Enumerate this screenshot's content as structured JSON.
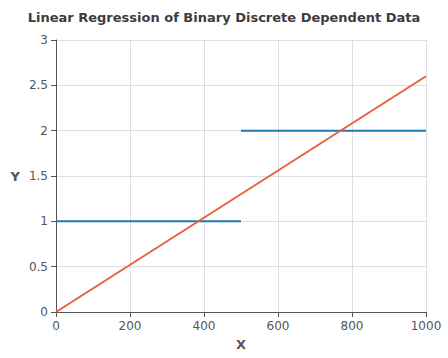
{
  "chart_data": {
    "type": "line",
    "title": "Linear Regression of Binary Discrete Dependent Data",
    "xlabel": "X",
    "ylabel": "Y",
    "xlim": [
      0,
      1000
    ],
    "xticks": [
      0,
      200,
      400,
      600,
      800,
      1000
    ],
    "ylim": [
      0,
      3
    ],
    "yticks": [
      0,
      0.5,
      1,
      1.5,
      2,
      2.5,
      3
    ],
    "grid": true,
    "series": [
      {
        "x": [
          0,
          500
        ],
        "values": [
          1,
          1
        ],
        "color": "#1f77b4"
      },
      {
        "x": [
          500,
          1000
        ],
        "values": [
          2,
          2
        ],
        "color": "#1f77b4"
      },
      {
        "x": [
          0,
          1000
        ],
        "values": [
          0,
          2.6
        ],
        "color": "#e8603c"
      }
    ]
  }
}
